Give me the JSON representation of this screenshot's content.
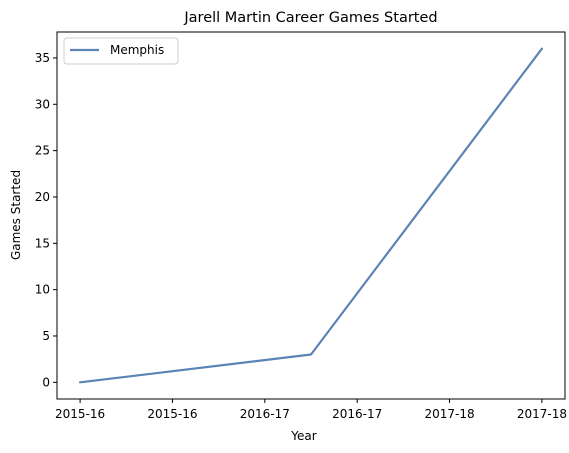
{
  "chart_data": {
    "type": "line",
    "title": "Jarell Martin Career Games Started",
    "xlabel": "Year",
    "ylabel": "Games Started",
    "x": [
      0,
      2,
      4
    ],
    "xticks": [
      0,
      0.8,
      1.6,
      2.4,
      3.2,
      4.0
    ],
    "xticklabels": [
      "2015-16",
      "2015-16",
      "2016-17",
      "2016-17",
      "2017-18",
      "2017-18"
    ],
    "xlim": [
      -0.2,
      4.2
    ],
    "ylim": [
      -1.8,
      37.8
    ],
    "yticks": [
      0,
      5,
      10,
      15,
      20,
      25,
      30,
      35
    ],
    "grid": false,
    "legend_position": "top-left",
    "series": [
      {
        "name": "Memphis",
        "values": [
          0,
          3,
          36
        ],
        "color": "#5b84b5"
      }
    ]
  }
}
